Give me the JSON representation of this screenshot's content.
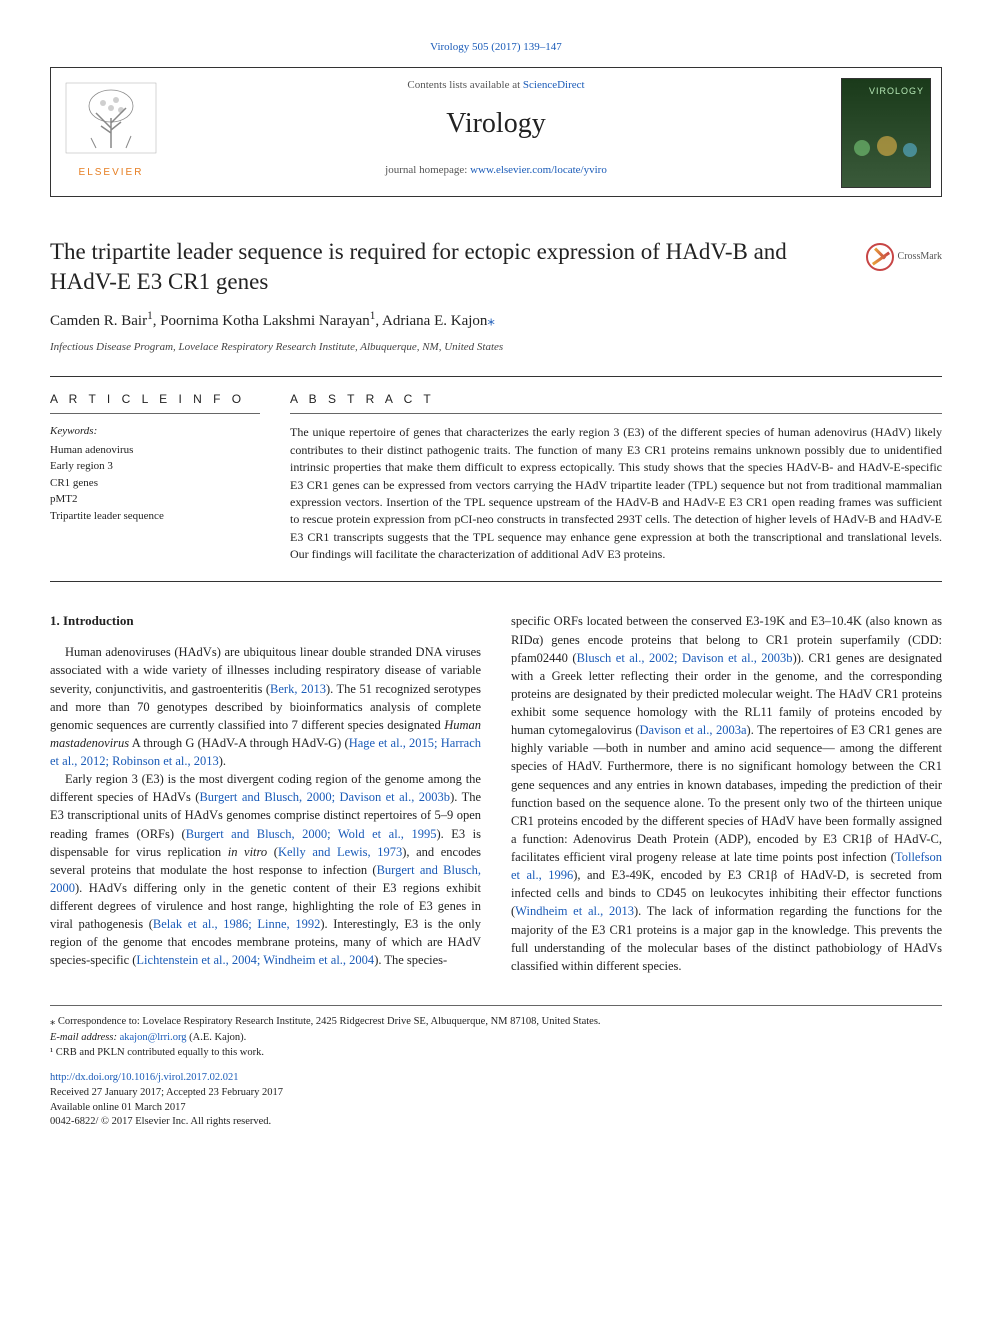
{
  "doiHeader": "Virology 505 (2017) 139–147",
  "header": {
    "contents_prefix": "Contents lists available at ",
    "contents_link": "ScienceDirect",
    "journal": "Virology",
    "homepage_prefix": "journal homepage: ",
    "homepage_url": "www.elsevier.com/locate/yviro",
    "publisher_name": "ELSEVIER",
    "cover_badge": "VIROLOGY"
  },
  "title": "The tripartite leader sequence is required for ectopic expression of HAdV-B and HAdV-E E3 CR1 genes",
  "crossmark": "CrossMark",
  "authors_html": "Camden R. Bair<sup>1</sup>, Poornima Kotha Lakshmi Narayan<sup>1</sup>, Adriana E. Kajon",
  "corr_sup": "⁎",
  "affiliation": "Infectious Disease Program, Lovelace Respiratory Research Institute, Albuquerque, NM, United States",
  "article_info_head": "A R T I C L E  I N F O",
  "abstract_head": "A B S T R A C T",
  "keywords_label": "Keywords:",
  "keywords": [
    "Human adenovirus",
    "Early region 3",
    "CR1 genes",
    "pMT2",
    "Tripartite leader sequence"
  ],
  "abstract": "The unique repertoire of genes that characterizes the early region 3 (E3) of the different species of human adenovirus (HAdV) likely contributes to their distinct pathogenic traits. The function of many E3 CR1 proteins remains unknown possibly due to unidentified intrinsic properties that make them difficult to express ectopically. This study shows that the species HAdV-B- and HAdV-E-specific E3 CR1 genes can be expressed from vectors carrying the HAdV tripartite leader (TPL) sequence but not from traditional mammalian expression vectors. Insertion of the TPL sequence upstream of the HAdV-B and HAdV-E E3 CR1 open reading frames was sufficient to rescue protein expression from pCI-neo constructs in transfected 293T cells. The detection of higher levels of HAdV-B and HAdV-E E3 CR1 transcripts suggests that the TPL sequence may enhance gene expression at both the transcriptional and translational levels. Our findings will facilitate the characterization of additional AdV E3 proteins.",
  "section1_title": "1. Introduction",
  "col1": {
    "p1": "Human adenoviruses (HAdVs) are ubiquitous linear double stranded DNA viruses associated with a wide variety of illnesses including respiratory disease of variable severity, conjunctivitis, and gastroenteritis (<span class='cite'>Berk, 2013</span>). The 51 recognized serotypes and more than 70 genotypes described by bioinformatics analysis of complete genomic sequences are currently classified into 7 different species designated <span class='ital'>Human mastadenovirus</span> A through G (HAdV-A through HAdV-G) (<span class='cite'>Hage et al., 2015; Harrach et al., 2012; Robinson et al., 2013</span>).",
    "p2": "Early region 3 (E3) is the most divergent coding region of the genome among the different species of HAdVs (<span class='cite'>Burgert and Blusch, 2000; Davison et al., 2003b</span>). The E3 transcriptional units of HAdVs genomes comprise distinct repertoires of 5–9 open reading frames (ORFs) (<span class='cite'>Burgert and Blusch, 2000; Wold et al., 1995</span>). E3 is dispensable for virus replication <span class='ital'>in vitro</span> (<span class='cite'>Kelly and Lewis, 1973</span>), and encodes several proteins that modulate the host response to infection (<span class='cite'>Burgert and Blusch, 2000</span>). HAdVs differing only in the genetic content of their E3 regions exhibit different degrees of virulence and host range, highlighting the role of E3 genes in viral pathogenesis (<span class='cite'>Belak et al., 1986; Linne, 1992</span>). Interestingly, E3 is the only region of the genome that encodes membrane proteins, many of which are HAdV species-specific (<span class='cite'>Lichtenstein et al., 2004; Windheim et al., 2004</span>). The species-"
  },
  "col2": {
    "p1": "specific ORFs located between the conserved E3-19K and E3–10.4K (also known as RIDα) genes encode proteins that belong to CR1 protein superfamily (CDD: pfam02440 (<span class='cite'>Blusch et al., 2002; Davison et al., 2003b</span>)). CR1 genes are designated with a Greek letter reflecting their order in the genome, and the corresponding proteins are designated by their predicted molecular weight. The HAdV CR1 proteins exhibit some sequence homology with the RL11 family of proteins encoded by human cytomegalovirus (<span class='cite'>Davison et al., 2003a</span>). The repertoires of E3 CR1 genes are highly variable —both in number and amino acid sequence— among the different species of HAdV. Furthermore, there is no significant homology between the CR1 gene sequences and any entries in known databases, impeding the prediction of their function based on the sequence alone. To the present only two of the thirteen unique CR1 proteins encoded by the different species of HAdV have been formally assigned a function: Adenovirus Death Protein (ADP), encoded by E3 CR1β of HAdV-C, facilitates efficient viral progeny release at late time points post infection (<span class='cite'>Tollefson et al., 1996</span>), and E3-49K, encoded by E3 CR1β of HAdV-D, is secreted from infected cells and binds to CD45 on leukocytes inhibiting their effector functions (<span class='cite'>Windheim et al., 2013</span>). The lack of information regarding the functions for the majority of the E3 CR1 proteins is a major gap in the knowledge. This prevents the full understanding of the molecular bases of the distinct pathobiology of HAdVs classified within different species."
  },
  "footer": {
    "corr": "⁎ Correspondence to: Lovelace Respiratory Research Institute, 2425 Ridgecrest Drive SE, Albuquerque, NM 87108, United States.",
    "email_label": "E-mail address: ",
    "email": "akajon@lrri.org",
    "email_suffix": " (A.E. Kajon).",
    "equal": "¹ CRB and PKLN contributed equally to this work.",
    "doi": "http://dx.doi.org/10.1016/j.virol.2017.02.021",
    "received": "Received 27 January 2017; Accepted 23 February 2017",
    "available": "Available online 01 March 2017",
    "copyright": "0042-6822/ © 2017 Elsevier Inc. All rights reserved."
  },
  "colors": {
    "link": "#1a5bb8",
    "publisher": "#e67e22",
    "border": "#333333",
    "cover_bg_top": "#1a3a1a",
    "cover_bg_bot": "#3a5a3a",
    "crossmark_border": "#c74545"
  }
}
